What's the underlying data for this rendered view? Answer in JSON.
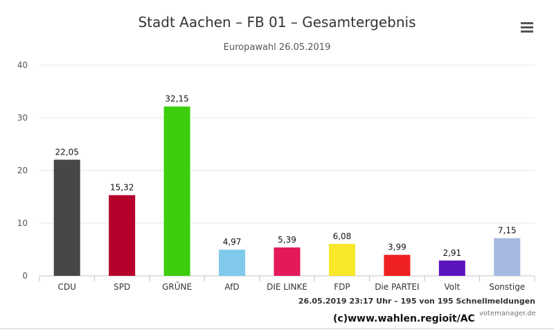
{
  "header": {
    "title": "Stadt Aachen – FB 01 – Gesamtergebnis",
    "subtitle": "Europawahl 26.05.2019",
    "menu_icon": "hamburger-menu-icon"
  },
  "footer": {
    "credit": "26.05.2019 23:17 Uhr – 195 von 195 Schnellmeldungen",
    "copyright": "(c)www.wahlen.regioit/AC",
    "brand": "votemanager.de"
  },
  "chart_data": {
    "type": "bar",
    "title": "Stadt Aachen – FB 01 – Gesamtergebnis",
    "subtitle": "Europawahl 26.05.2019",
    "xlabel": "",
    "ylabel": "",
    "ylim": [
      0,
      40
    ],
    "yticks": [
      0,
      10,
      20,
      30,
      40
    ],
    "grid": true,
    "categories": [
      "CDU",
      "SPD",
      "GRÜNE",
      "AfD",
      "DIE LINKE",
      "FDP",
      "Die PARTEI",
      "Volt",
      "Sonstige"
    ],
    "values": [
      22.05,
      15.32,
      32.15,
      4.97,
      5.39,
      6.08,
      3.99,
      2.91,
      7.15
    ],
    "labels": [
      "22,05",
      "15,32",
      "32,15",
      "4,97",
      "5,39",
      "6,08",
      "3,99",
      "2,91",
      "7,15"
    ],
    "colors": [
      "#474747",
      "#b5002c",
      "#3cce0c",
      "#80c9ec",
      "#e4195a",
      "#f8e82a",
      "#ee2020",
      "#5b13bd",
      "#a6b9e2"
    ]
  }
}
